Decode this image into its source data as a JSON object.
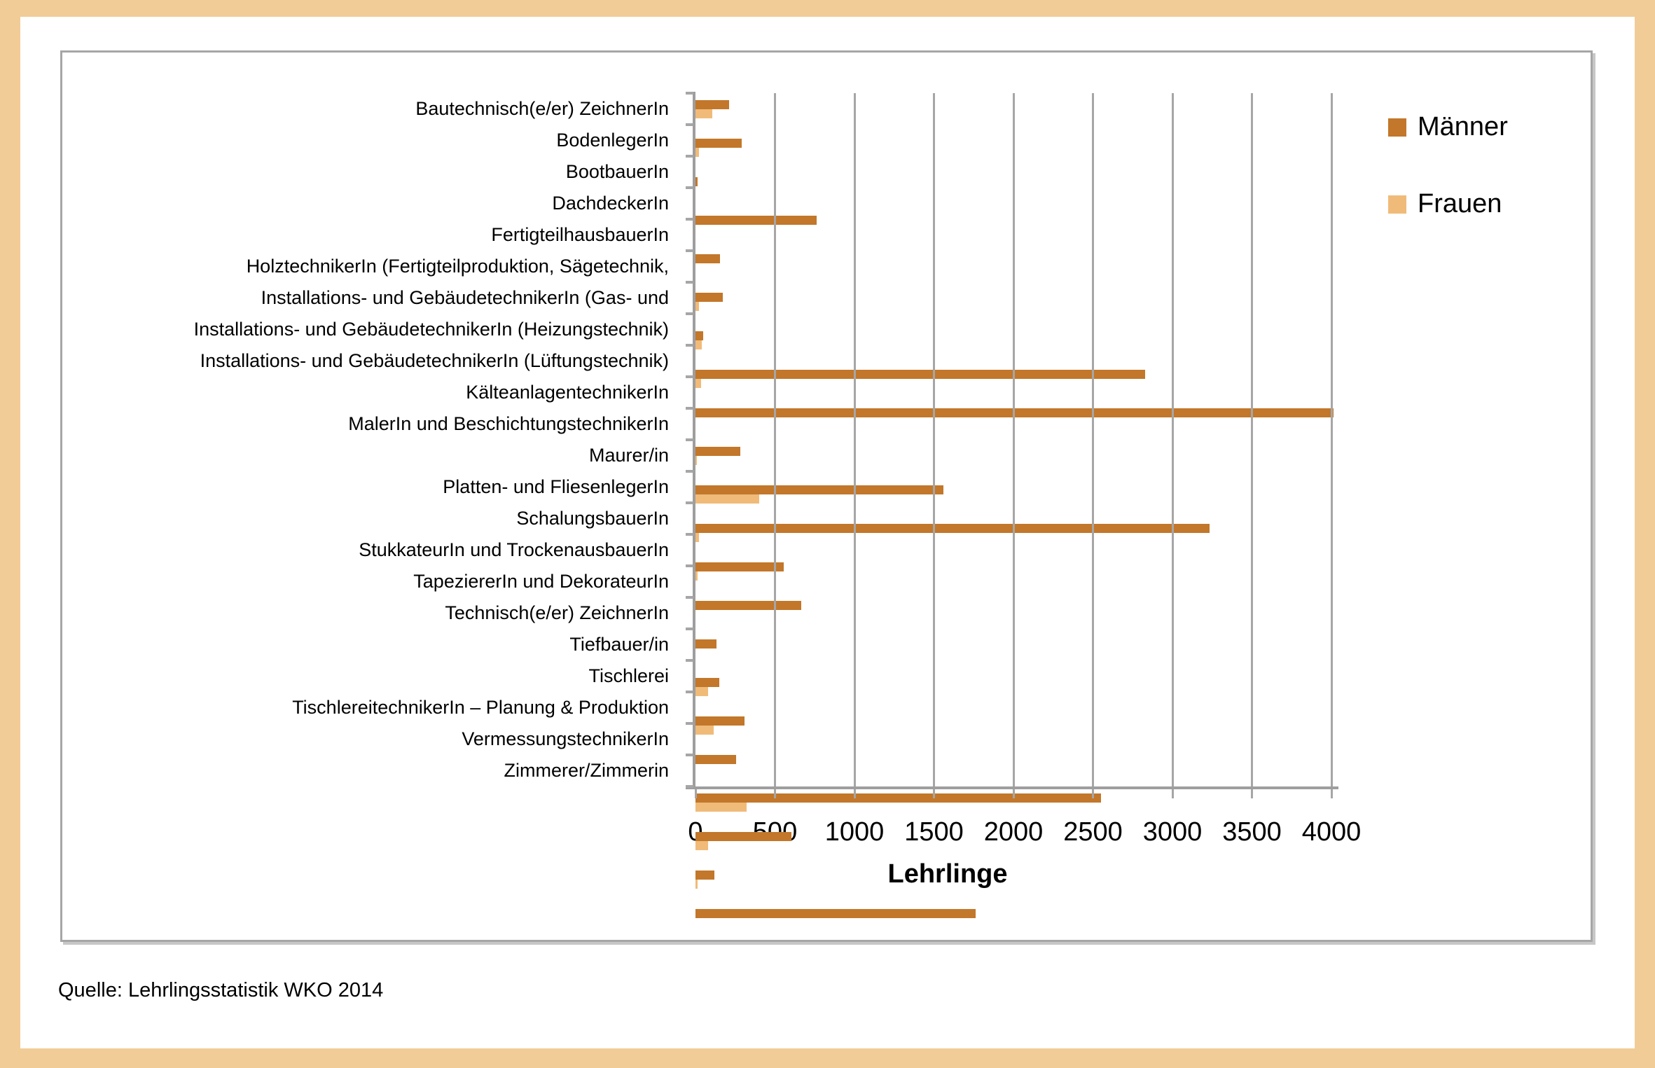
{
  "background_color": "#F2CC96",
  "frame_border_color": "#A6A6A6",
  "grid_color": "#A6A6A6",
  "source": "Quelle: Lehrlingsstatistik WKO 2014",
  "legend": {
    "items": [
      {
        "label": "Männer",
        "color": "#C2772A"
      },
      {
        "label": "Frauen",
        "color": "#F0BB79"
      }
    ]
  },
  "chart_data": {
    "type": "bar",
    "orientation": "horizontal",
    "title": "",
    "xlabel": "Lehrlinge",
    "ylabel": "",
    "xlim": [
      0,
      4000
    ],
    "x_ticks": [
      0,
      500,
      1000,
      1500,
      2000,
      2500,
      3000,
      3500,
      4000
    ],
    "grid": true,
    "legend_position": "right",
    "categories": [
      "Bautechnisch(e/er) ZeichnerIn",
      "BodenlegerIn",
      "BootbauerIn",
      "DachdeckerIn",
      "FertigteilhausbauerIn",
      "HolztechnikerIn (Fertigteilproduktion, Sägetechnik,",
      "Installations- und GebäudetechnikerIn (Gas- und",
      "Installations- und GebäudetechnikerIn (Heizungstechnik)",
      "Installations- und GebäudetechnikerIn (Lüftungstechnik)",
      "KälteanlagentechnikerIn",
      "MalerIn und BeschichtungstechnikerIn",
      "Maurer/in",
      "Platten- und FliesenlegerIn",
      "SchalungsbauerIn",
      "StukkateurIn und TrockenausbauerIn",
      "TapeziererIn und DekorateurIn",
      "Technisch(e/er) ZeichnerIn",
      "Tiefbauer/in",
      "Tischlerei",
      "TischlereitechnikerIn – Planung & Produktion",
      "VermessungstechnikerIn",
      "Zimmerer/Zimmerin"
    ],
    "series": [
      {
        "name": "Männer",
        "color": "#C2772A",
        "values": [
          210,
          290,
          15,
          760,
          155,
          170,
          50,
          2830,
          4015,
          280,
          1560,
          3235,
          555,
          665,
          130,
          150,
          310,
          255,
          2550,
          605,
          120,
          1760
        ]
      },
      {
        "name": "Frauen",
        "color": "#F0BB79",
        "values": [
          105,
          20,
          0,
          0,
          0,
          20,
          40,
          35,
          0,
          10,
          400,
          20,
          15,
          0,
          0,
          80,
          115,
          0,
          320,
          80,
          15,
          0
        ]
      }
    ]
  }
}
